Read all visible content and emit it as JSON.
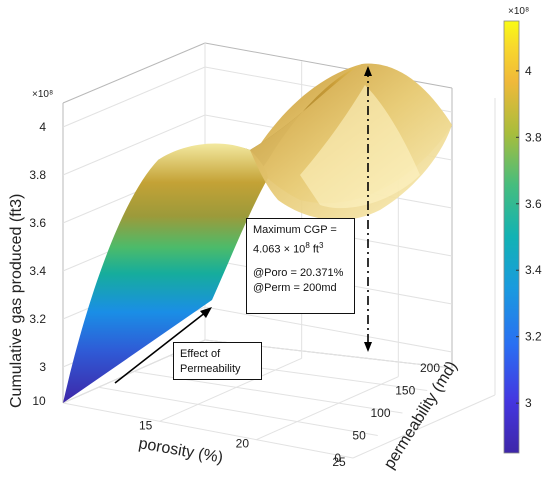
{
  "chart_data": {
    "type": "surface3d",
    "xlabel": "porosity (%)",
    "ylabel": "permeability (md)",
    "zlabel": "Cumulative gas produced (ft3)",
    "z_multiplier": "×10⁸",
    "x_ticks": [
      "10",
      "15",
      "20",
      "25"
    ],
    "y_ticks": [
      "0",
      "50",
      "100",
      "150",
      "200"
    ],
    "z_ticks": [
      "3",
      "3.2",
      "3.4",
      "3.6",
      "3.8",
      "4"
    ],
    "colorbar_ticks": [
      "3",
      "3.2",
      "3.4",
      "3.6",
      "3.8",
      "4"
    ],
    "colorbar_multiplier": "×10⁸",
    "colormap": [
      "#3e26a8",
      "#3b4cf0",
      "#1a8ee6",
      "#0fb0b8",
      "#3ebd7a",
      "#9fbd3a",
      "#e0b52e",
      "#f6d82a",
      "#f9fb15"
    ],
    "xlim": [
      10,
      25
    ],
    "ylim": [
      0,
      200
    ],
    "zlim": [
      2.85,
      4.1
    ],
    "surface_samples": {
      "porosity": [
        10,
        12.5,
        15,
        17.5,
        20.371,
        22.5,
        25
      ],
      "permeability_0": [
        2.86,
        3.05,
        3.2,
        3.3,
        3.35,
        3.33,
        3.28
      ],
      "permeability_200": [
        2.92,
        3.6,
        3.88,
        4.02,
        4.063,
        4.04,
        3.98
      ]
    },
    "maximum": {
      "porosity": 20.371,
      "permeability": 200,
      "cgp": 4.063
    }
  },
  "annotations": {
    "max_line1": "Maximum CGP =",
    "max_line2_prefix": "4.063 × 10",
    "max_line2_exp": "8",
    "max_line2_unit": " ft",
    "max_line2_unit_exp": "3",
    "poro_line": "@Poro = 20.371%",
    "perm_line": "@Perm = 200md",
    "effect_line1": "Effect of",
    "effect_line2": "Permeability"
  }
}
